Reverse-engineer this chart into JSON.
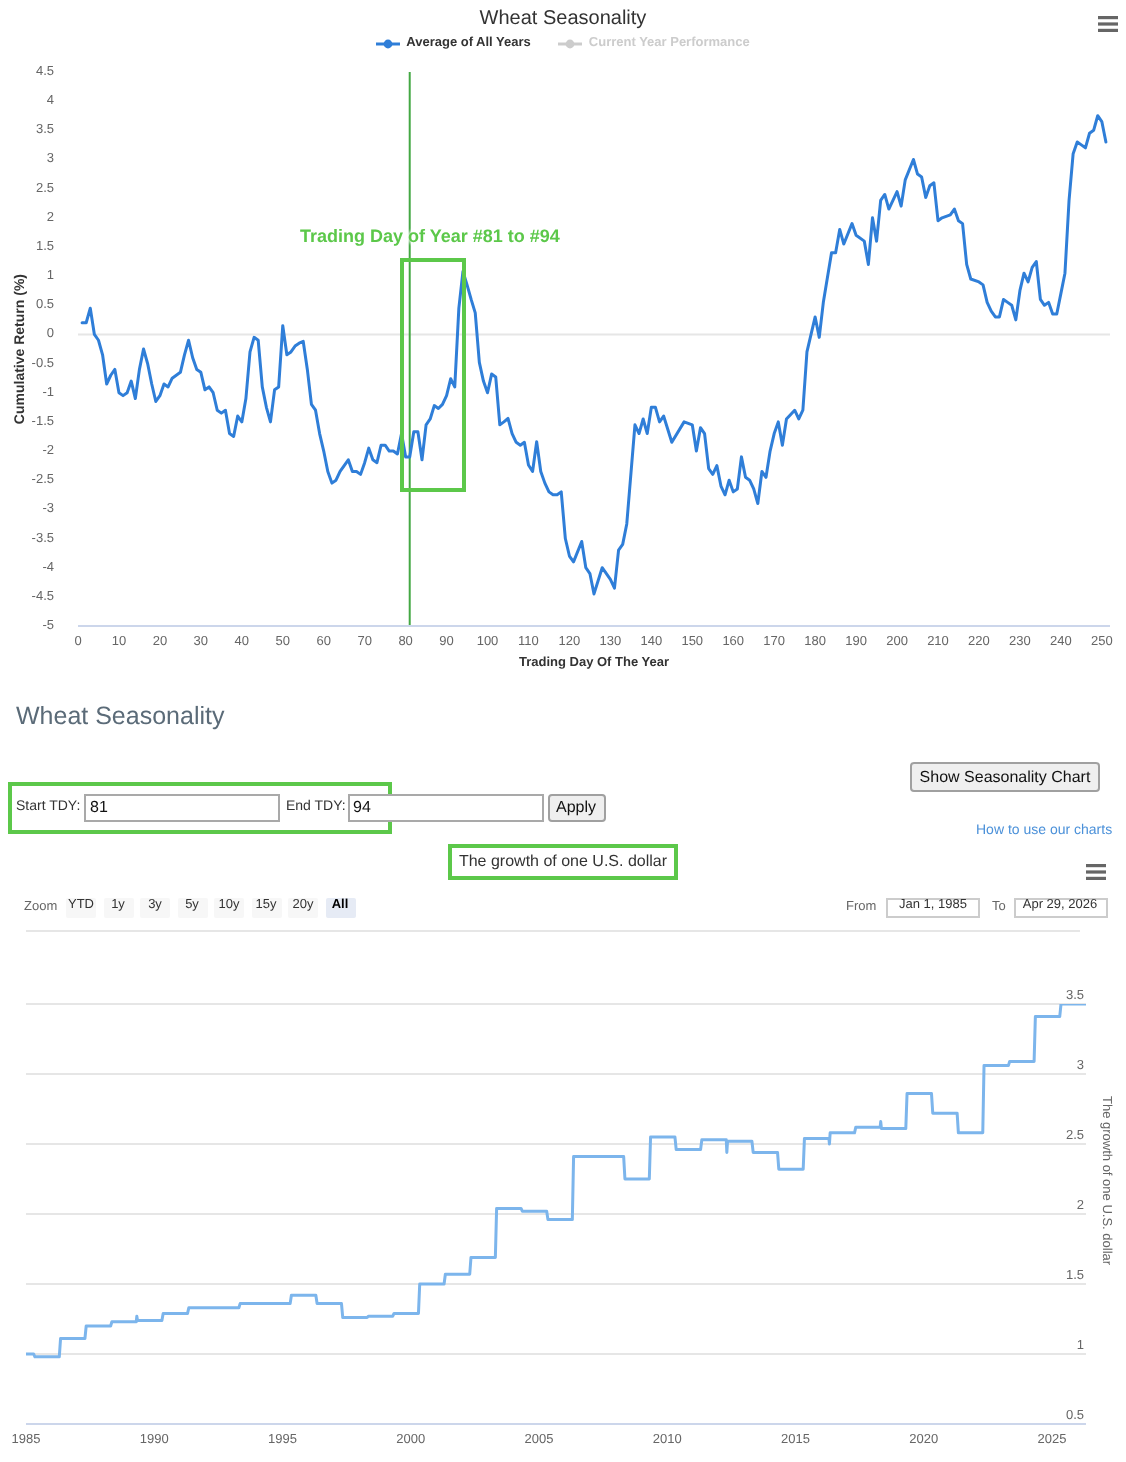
{
  "chart_data": [
    {
      "type": "line",
      "title": "Wheat Seasonality",
      "xlabel": "Trading Day Of The Year",
      "ylabel": "Cumulative Return (%)",
      "legend": "top",
      "xlim": [
        0,
        252
      ],
      "xticks": [
        0,
        10,
        20,
        30,
        40,
        50,
        60,
        70,
        80,
        90,
        100,
        110,
        120,
        130,
        140,
        150,
        160,
        170,
        180,
        190,
        200,
        210,
        220,
        230,
        240,
        250
      ],
      "ylim": [
        -5,
        4.5
      ],
      "yticks": [
        -5,
        -4.5,
        -4,
        -3.5,
        -3,
        -2.5,
        -2,
        -1.5,
        -1,
        -0.5,
        0,
        0.5,
        1,
        1.5,
        2,
        2.5,
        3,
        3.5,
        4,
        4.5
      ],
      "series": [
        {
          "name": "Average of All Years",
          "color": "#2f7ed8",
          "x": [
            1,
            2,
            3,
            4,
            5,
            6,
            7,
            8,
            9,
            10,
            11,
            12,
            13,
            14,
            15,
            16,
            17,
            18,
            19,
            20,
            21,
            22,
            23,
            24,
            25,
            26,
            27,
            28,
            29,
            30,
            31,
            32,
            33,
            34,
            35,
            36,
            37,
            38,
            39,
            40,
            41,
            42,
            43,
            44,
            45,
            46,
            47,
            48,
            49,
            50,
            51,
            52,
            53,
            54,
            55,
            56,
            57,
            58,
            59,
            60,
            61,
            62,
            63,
            64,
            65,
            66,
            67,
            68,
            69,
            70,
            71,
            72,
            73,
            74,
            75,
            76,
            77,
            78,
            79,
            80,
            81,
            82,
            83,
            84,
            85,
            86,
            87,
            88,
            89,
            90,
            91,
            92,
            93,
            94,
            95,
            96,
            97,
            98,
            99,
            100,
            101,
            102,
            103,
            104,
            105,
            106,
            107,
            108,
            109,
            110,
            111,
            112,
            113,
            114,
            115,
            116,
            117,
            118,
            119,
            120,
            121,
            123,
            124,
            125,
            126,
            128,
            130,
            131,
            132,
            133,
            134,
            136,
            137,
            138,
            139,
            140,
            141,
            142,
            143,
            145,
            148,
            150,
            151,
            152,
            153,
            154,
            155,
            156,
            157,
            158,
            159,
            160,
            161,
            162,
            163,
            164,
            165,
            166,
            167,
            168,
            169,
            170,
            171,
            172,
            173,
            175,
            176,
            177,
            178,
            180,
            181,
            182,
            184,
            185,
            186,
            187,
            189,
            190,
            192,
            193,
            194,
            195,
            196,
            197,
            198,
            200,
            201,
            202,
            204,
            205,
            206,
            207,
            208,
            209,
            210,
            211,
            213,
            214,
            215,
            216,
            217,
            218,
            220,
            221,
            222,
            223,
            224,
            225,
            226,
            227,
            228,
            229,
            230,
            231,
            232,
            233,
            234,
            235,
            236,
            237,
            238,
            239,
            240,
            241,
            242,
            243,
            244,
            245,
            246,
            247,
            248,
            249,
            250,
            251
          ],
          "values": [
            0.2,
            0.2,
            0.45,
            0.0,
            -0.1,
            -0.35,
            -0.85,
            -0.7,
            -0.6,
            -1.0,
            -1.05,
            -1.0,
            -0.8,
            -1.1,
            -0.6,
            -0.25,
            -0.5,
            -0.85,
            -1.15,
            -1.05,
            -0.85,
            -0.9,
            -0.75,
            -0.7,
            -0.65,
            -0.35,
            -0.1,
            -0.4,
            -0.6,
            -0.65,
            -0.95,
            -0.9,
            -1.0,
            -1.3,
            -1.35,
            -1.3,
            -1.7,
            -1.75,
            -1.4,
            -1.5,
            -1.1,
            -0.3,
            -0.05,
            -0.1,
            -0.9,
            -1.25,
            -1.5,
            -0.95,
            -0.9,
            0.15,
            -0.35,
            -0.3,
            -0.2,
            -0.15,
            -0.12,
            -0.6,
            -1.2,
            -1.3,
            -1.7,
            -2.0,
            -2.35,
            -2.55,
            -2.5,
            -2.35,
            -2.25,
            -2.15,
            -2.35,
            -2.35,
            -2.4,
            -2.2,
            -1.95,
            -2.15,
            -2.2,
            -1.9,
            -1.9,
            -2.0,
            -2.0,
            -2.05,
            -1.7,
            -2.1,
            -2.1,
            -1.67,
            -1.67,
            -2.15,
            -1.55,
            -1.45,
            -1.22,
            -1.27,
            -1.2,
            -1.05,
            -0.76,
            -0.9,
            0.45,
            1.08,
            0.85,
            0.6,
            0.37,
            -0.48,
            -0.8,
            -1.0,
            -0.68,
            -0.73,
            -1.55,
            -1.5,
            -1.44,
            -1.7,
            -1.85,
            -1.9,
            -1.85,
            -2.24,
            -2.35,
            -1.84,
            -2.35,
            -2.55,
            -2.7,
            -2.75,
            -2.75,
            -2.7,
            -3.5,
            -3.8,
            -3.9,
            -3.55,
            -4.0,
            -4.1,
            -4.45,
            -4.0,
            -4.2,
            -4.35,
            -3.7,
            -3.6,
            -3.25,
            -1.55,
            -1.7,
            -1.45,
            -1.7,
            -1.25,
            -1.25,
            -1.5,
            -1.4,
            -1.85,
            -1.5,
            -1.55,
            -2.0,
            -1.6,
            -1.7,
            -2.3,
            -2.4,
            -2.25,
            -2.6,
            -2.75,
            -2.5,
            -2.7,
            -2.65,
            -2.1,
            -2.45,
            -2.5,
            -2.65,
            -2.9,
            -2.35,
            -2.45,
            -2.0,
            -1.7,
            -1.5,
            -1.9,
            -1.45,
            -1.3,
            -1.45,
            -1.3,
            -0.3,
            0.3,
            -0.05,
            0.55,
            1.4,
            1.4,
            1.8,
            1.55,
            1.9,
            1.7,
            1.6,
            1.2,
            2.0,
            1.6,
            2.3,
            2.4,
            2.15,
            2.45,
            2.2,
            2.65,
            3.0,
            2.75,
            2.7,
            2.35,
            2.55,
            2.6,
            1.95,
            2.0,
            2.05,
            2.15,
            1.95,
            1.9,
            1.2,
            0.95,
            0.9,
            0.85,
            0.55,
            0.4,
            0.3,
            0.3,
            0.6,
            0.55,
            0.5,
            0.25,
            0.75,
            1.05,
            0.9,
            1.15,
            1.25,
            0.6,
            0.5,
            0.55,
            0.35,
            0.35,
            0.7,
            1.05,
            2.3,
            3.1,
            3.3,
            3.25,
            3.2,
            3.45,
            3.5,
            3.75,
            3.65,
            3.3
          ]
        },
        {
          "name": "Current Year Performance",
          "color": "#cccccc"
        }
      ],
      "ref_lines": [
        {
          "axis": "y",
          "value": 0,
          "color": "#e6e6e6"
        },
        {
          "axis": "x",
          "value": 81,
          "color": "#44a844"
        }
      ],
      "annotations": [
        "Trading Day of Year #81 to #94"
      ]
    },
    {
      "type": "other",
      "title": "Wheat Seasonality",
      "annotations": [
        "Start TDY:",
        "81",
        "End TDY:",
        "94",
        "Apply",
        "Show Seasonality Chart",
        "How to use our charts"
      ]
    },
    {
      "type": "line",
      "title": "The growth of one U.S. dollar",
      "ylabel": "The growth of one U.S. dollar",
      "color": "#7cb5ec",
      "grid": "y",
      "xlim": [
        "1985-01-01",
        "2026-04-29"
      ],
      "xticks": [
        "1985",
        "1990",
        "1995",
        "2000",
        "2005",
        "2010",
        "2015",
        "2020",
        "2025"
      ],
      "ylim": [
        0.5,
        3.5
      ],
      "yticks": [
        0.5,
        1,
        1.5,
        2,
        2.5,
        3,
        3.5
      ],
      "x": [
        "1985-01-01",
        "1985-04-20",
        "1985-05-08",
        "1986-04-20",
        "1986-05-08",
        "1987-04-20",
        "1987-05-08",
        "1988-04-20",
        "1988-05-08",
        "1989-04-20",
        "1989-04-28",
        "1989-05-08",
        "1990-04-20",
        "1990-05-08",
        "1991-04-20",
        "1991-05-08",
        "1993-04-20",
        "1993-05-08",
        "1995-04-20",
        "1995-05-08",
        "1996-04-20",
        "1996-05-08",
        "1997-04-20",
        "1997-05-08",
        "1998-04-20",
        "1998-05-08",
        "1999-04-20",
        "1999-05-08",
        "2000-04-20",
        "2000-05-08",
        "2001-04-20",
        "2001-05-08",
        "2002-04-20",
        "2002-05-08",
        "2003-04-20",
        "2003-05-08",
        "2004-04-20",
        "2004-05-08",
        "2005-04-20",
        "2005-05-08",
        "2006-04-20",
        "2006-05-08",
        "2008-04-20",
        "2008-05-08",
        "2009-04-20",
        "2009-05-08",
        "2010-04-20",
        "2010-05-08",
        "2011-04-20",
        "2011-05-08",
        "2012-04-20",
        "2012-04-28",
        "2012-05-08",
        "2013-04-20",
        "2013-05-08",
        "2014-04-20",
        "2014-05-08",
        "2015-04-20",
        "2015-05-08",
        "2016-04-20",
        "2016-04-28",
        "2016-05-08",
        "2017-04-20",
        "2017-05-08",
        "2018-04-20",
        "2018-04-28",
        "2018-05-08",
        "2019-04-20",
        "2019-05-08",
        "2020-04-20",
        "2020-05-08",
        "2021-04-20",
        "2021-05-08",
        "2022-04-20",
        "2022-05-08",
        "2023-04-20",
        "2023-05-08",
        "2024-04-20",
        "2024-05-08",
        "2025-04-20",
        "2025-05-08",
        "2026-04-29"
      ],
      "values": [
        1.0,
        1.0,
        0.98,
        0.98,
        1.11,
        1.11,
        1.2,
        1.2,
        1.23,
        1.23,
        1.27,
        1.24,
        1.24,
        1.29,
        1.29,
        1.33,
        1.33,
        1.36,
        1.36,
        1.42,
        1.42,
        1.36,
        1.36,
        1.26,
        1.26,
        1.27,
        1.27,
        1.29,
        1.29,
        1.5,
        1.5,
        1.57,
        1.57,
        1.69,
        1.69,
        2.04,
        2.04,
        2.02,
        2.02,
        1.96,
        1.96,
        2.41,
        2.41,
        2.25,
        2.25,
        2.55,
        2.55,
        2.46,
        2.46,
        2.53,
        2.53,
        2.44,
        2.52,
        2.52,
        2.44,
        2.44,
        2.32,
        2.32,
        2.54,
        2.54,
        2.5,
        2.58,
        2.58,
        2.62,
        2.62,
        2.66,
        2.61,
        2.61,
        2.86,
        2.86,
        2.72,
        2.72,
        2.58,
        2.58,
        3.06,
        3.06,
        3.09,
        3.09,
        3.41,
        3.41,
        3.5,
        3.5
      ],
      "annotations": [
        "Zoom",
        "YTD",
        "1y",
        "3y",
        "5y",
        "10y",
        "15y",
        "20y",
        "All",
        "From",
        "Jan 1, 1985",
        "To",
        "Apr 29, 2026"
      ]
    }
  ]
}
